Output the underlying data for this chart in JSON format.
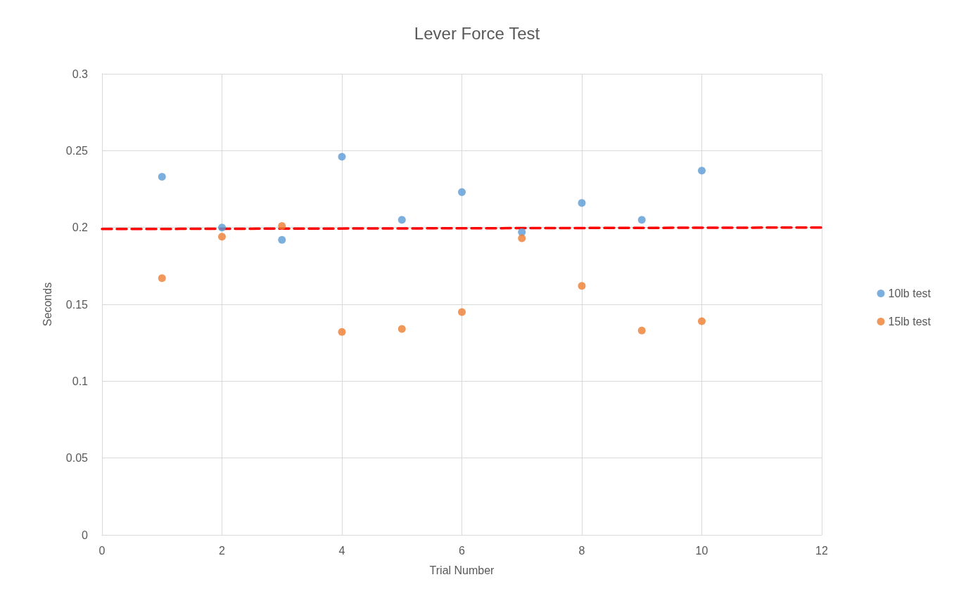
{
  "chart_data": {
    "type": "scatter",
    "title": "Lever Force Test",
    "xlabel": "Trial Number",
    "ylabel": "Seconds",
    "x": [
      1,
      2,
      3,
      4,
      5,
      6,
      7,
      8,
      9,
      10
    ],
    "series": [
      {
        "name": "10lb test",
        "color": "#5b9bd5",
        "values": [
          0.233,
          0.2,
          0.192,
          0.246,
          0.205,
          0.223,
          0.197,
          0.216,
          0.205,
          0.237
        ]
      },
      {
        "name": "15lb test",
        "color": "#ed7d31",
        "values": [
          0.167,
          0.194,
          0.201,
          0.132,
          0.134,
          0.145,
          0.193,
          0.162,
          0.133,
          0.139
        ]
      },
      {
        "type": "line",
        "color": "#ff0000",
        "x": [
          0,
          12
        ],
        "values": [
          0.199,
          0.2
        ],
        "line_style": "dashed",
        "marker": "none"
      }
    ],
    "xlim": [
      0,
      12
    ],
    "xticks": [
      0,
      2,
      4,
      6,
      8,
      10,
      12
    ],
    "ylim": [
      0,
      0.3
    ],
    "yticks": [
      0,
      0.05,
      0.1,
      0.15,
      0.2,
      0.25,
      0.3
    ],
    "grid": true,
    "legend": "right",
    "marker": "circle"
  }
}
